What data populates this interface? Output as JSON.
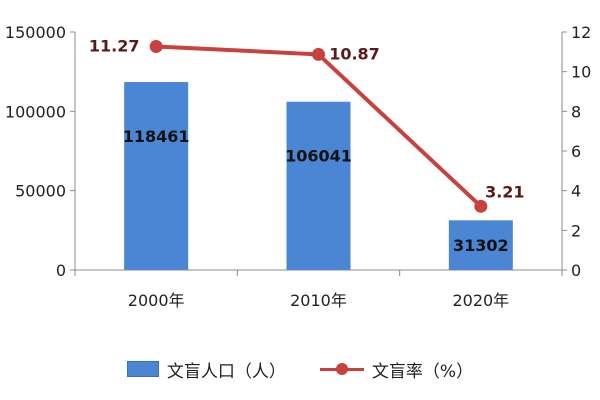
{
  "chart_data": {
    "type": "bar",
    "categories": [
      "2000年",
      "2010年",
      "2020年"
    ],
    "series": [
      {
        "name": "文盲人口（人）",
        "type": "bar",
        "axis": "left",
        "values": [
          118461,
          106041,
          31302
        ],
        "color": "#4a86d4"
      },
      {
        "name": "文盲率（%）",
        "type": "line",
        "axis": "right",
        "values": [
          11.27,
          10.87,
          3.21
        ],
        "color": "#c8413f"
      }
    ],
    "y_left": {
      "min": 0,
      "max": 150000,
      "ticks": [
        "0",
        "50000",
        "100000",
        "150000"
      ]
    },
    "y_right": {
      "min": 0,
      "max": 12,
      "ticks": [
        "0",
        "2",
        "4",
        "6",
        "8",
        "10",
        "12"
      ]
    },
    "bar_labels": [
      "118461",
      "106041",
      "31302"
    ],
    "line_labels": [
      "11.27",
      "10.87",
      "3.21"
    ],
    "legend_position": "bottom",
    "grid": false
  }
}
